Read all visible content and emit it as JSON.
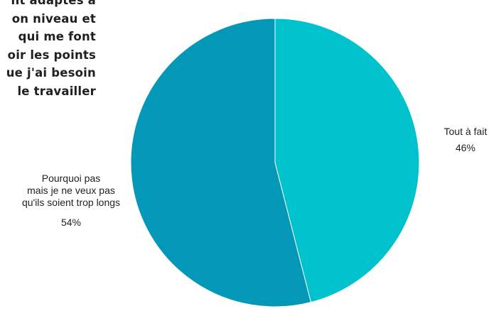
{
  "question": {
    "lines": [
      "nt adaptés à",
      "on niveau et",
      "qui me font",
      "oir les points",
      "ue j'ai besoin",
      "le travailler"
    ]
  },
  "colors": {
    "slice_1": "#00c2cc",
    "slice_2": "#0398b8",
    "divider": "#ffffff"
  },
  "chart_data": {
    "type": "pie",
    "slices": [
      {
        "label_lines": [
          "Tout à fait"
        ],
        "value": 46,
        "value_label": "46%"
      },
      {
        "label_lines": [
          "Pourquoi pas",
          "mais je ne veux pas",
          "qu'ils soient trop longs"
        ],
        "value": 54,
        "value_label": "54%"
      }
    ]
  }
}
